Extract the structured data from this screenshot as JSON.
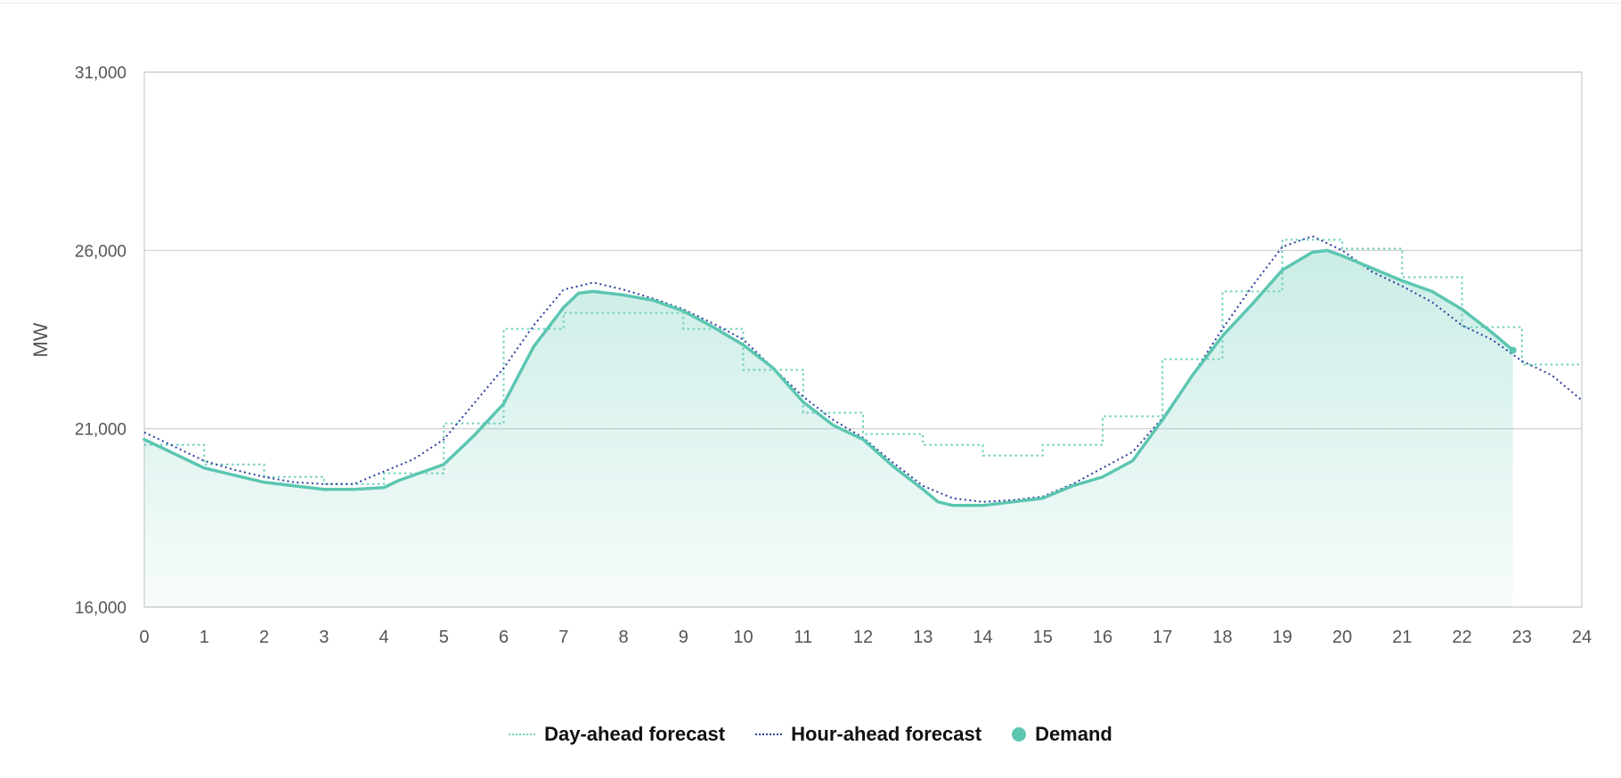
{
  "colors": {
    "demand": "#5cc6b1",
    "day_ahead": "#6fd0bd",
    "hour_ahead": "#2b3f9e",
    "grid": "#cccccc",
    "axis_text": "#555555"
  },
  "chart_data": {
    "type": "line",
    "title": "",
    "xlabel": "",
    "ylabel": "MW",
    "xlim": [
      0,
      24
    ],
    "ylim": [
      16000,
      31000
    ],
    "x_ticks": [
      "0",
      "1",
      "2",
      "3",
      "4",
      "5",
      "6",
      "7",
      "8",
      "9",
      "10",
      "11",
      "12",
      "13",
      "14",
      "15",
      "16",
      "17",
      "18",
      "19",
      "20",
      "21",
      "22",
      "23",
      "24"
    ],
    "y_ticks": [
      {
        "value": 16000,
        "label": "16,000"
      },
      {
        "value": 21000,
        "label": "21,000"
      },
      {
        "value": 26000,
        "label": "26,000"
      },
      {
        "value": 31000,
        "label": "31,000"
      }
    ],
    "grid": true,
    "legend_position": "bottom-center",
    "series": [
      {
        "name": "Day-ahead forecast",
        "style": "dotted-step",
        "x": [
          0,
          1,
          2,
          3,
          4,
          5,
          6,
          7,
          8,
          9,
          10,
          11,
          12,
          13,
          14,
          15,
          16,
          17,
          18,
          19,
          20,
          21,
          22,
          23,
          24
        ],
        "y": [
          20550,
          20000,
          19650,
          19450,
          19750,
          21150,
          23800,
          24250,
          24250,
          23800,
          22650,
          21450,
          20850,
          20550,
          20250,
          20550,
          21350,
          22950,
          24850,
          26300,
          26050,
          25250,
          23850,
          22800,
          22800
        ]
      },
      {
        "name": "Hour-ahead forecast",
        "style": "dotted",
        "x": [
          0,
          0.5,
          1,
          1.5,
          2,
          2.5,
          3,
          3.5,
          4,
          4.5,
          5,
          5.5,
          6,
          6.5,
          7,
          7.5,
          8,
          8.5,
          9,
          9.5,
          10,
          10.5,
          11,
          11.5,
          12,
          12.5,
          13,
          13.5,
          14,
          14.5,
          15,
          15.5,
          16,
          16.5,
          17,
          17.5,
          18,
          18.5,
          19,
          19.5,
          20,
          20.5,
          21,
          21.5,
          22,
          22.5,
          23,
          23.5,
          24
        ],
        "y": [
          20900,
          20500,
          20100,
          19850,
          19650,
          19500,
          19450,
          19450,
          19800,
          20150,
          20700,
          21700,
          22700,
          23900,
          24900,
          25100,
          24900,
          24650,
          24350,
          23950,
          23500,
          22700,
          21900,
          21250,
          20750,
          20050,
          19400,
          19050,
          18950,
          19000,
          19100,
          19450,
          19900,
          20350,
          21300,
          22500,
          23800,
          25000,
          26100,
          26400,
          26000,
          25400,
          25000,
          24550,
          23900,
          23500,
          22900,
          22500,
          21800
        ]
      },
      {
        "name": "Demand",
        "style": "solid-area",
        "x": [
          0,
          0.5,
          1,
          1.5,
          2,
          2.5,
          3,
          3.5,
          4,
          4.25,
          4.5,
          5,
          5.25,
          5.5,
          6,
          6.25,
          6.5,
          7,
          7.25,
          7.5,
          8,
          8.5,
          9,
          9.5,
          10,
          10.5,
          11,
          11.5,
          12,
          12.5,
          13,
          13.25,
          13.5,
          14,
          14.5,
          15,
          15.5,
          16,
          16.5,
          17,
          17.5,
          18,
          18.5,
          19,
          19.5,
          19.75,
          20,
          20.5,
          21,
          21.5,
          22,
          22.5,
          22.85
        ],
        "y": [
          20700,
          20300,
          19900,
          19700,
          19500,
          19400,
          19300,
          19300,
          19350,
          19550,
          19700,
          20000,
          20400,
          20800,
          21700,
          22500,
          23300,
          24400,
          24800,
          24850,
          24750,
          24600,
          24300,
          23850,
          23350,
          22700,
          21750,
          21100,
          20700,
          19950,
          19300,
          18950,
          18850,
          18850,
          18950,
          19050,
          19400,
          19650,
          20100,
          21250,
          22500,
          23600,
          24500,
          25450,
          25950,
          26000,
          25850,
          25500,
          25150,
          24850,
          24350,
          23700,
          23200
        ]
      }
    ]
  },
  "legend": [
    {
      "label": "Day-ahead forecast",
      "swatch": "dotted",
      "color": "#6fd0bd"
    },
    {
      "label": "Hour-ahead forecast",
      "swatch": "dotted",
      "color": "#2b3f9e"
    },
    {
      "label": "Demand",
      "swatch": "dot",
      "color": "#5cc6b1"
    }
  ]
}
